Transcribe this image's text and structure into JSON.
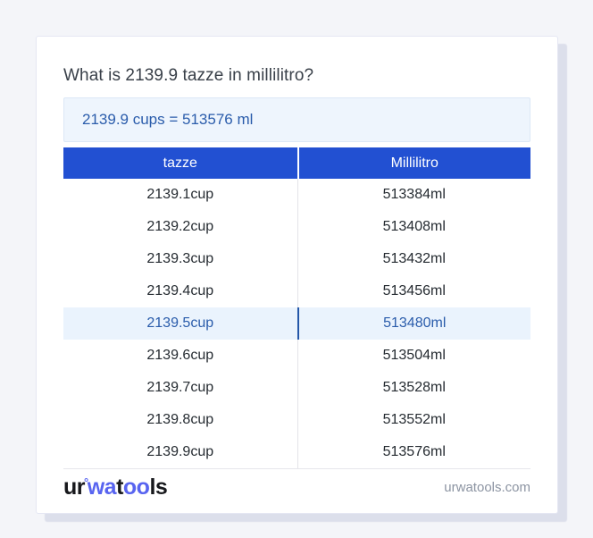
{
  "title": "What is 2139.9 tazze in millilitro?",
  "answer": {
    "text": "2139.9 cups = 513576 ml"
  },
  "table": {
    "headers": [
      "tazze",
      "Millilitro"
    ],
    "rows": [
      {
        "cup": "2139.1cup",
        "ml": "513384ml",
        "highlight": false
      },
      {
        "cup": "2139.2cup",
        "ml": "513408ml",
        "highlight": false
      },
      {
        "cup": "2139.3cup",
        "ml": "513432ml",
        "highlight": false
      },
      {
        "cup": "2139.4cup",
        "ml": "513456ml",
        "highlight": false
      },
      {
        "cup": "2139.5cup",
        "ml": "513480ml",
        "highlight": true
      },
      {
        "cup": "2139.6cup",
        "ml": "513504ml",
        "highlight": false
      },
      {
        "cup": "2139.7cup",
        "ml": "513528ml",
        "highlight": false
      },
      {
        "cup": "2139.8cup",
        "ml": "513552ml",
        "highlight": false
      },
      {
        "cup": "2139.9cup",
        "ml": "513576ml",
        "highlight": false
      }
    ]
  },
  "footer": {
    "logo": {
      "p1": "ur",
      "mark": "°",
      "p2": "wa",
      "p3": "t",
      "p4": "oo",
      "p5": "ls"
    },
    "site": "urwatools.com"
  },
  "colors": {
    "page_background": "#f4f5f9",
    "header_blue": "#2250d2",
    "accent_text_blue": "#2a5cab",
    "highlight_row_bg": "#eaf3fd",
    "answer_box_bg": "#eef5fd",
    "logo_blue": "#5864f0"
  }
}
